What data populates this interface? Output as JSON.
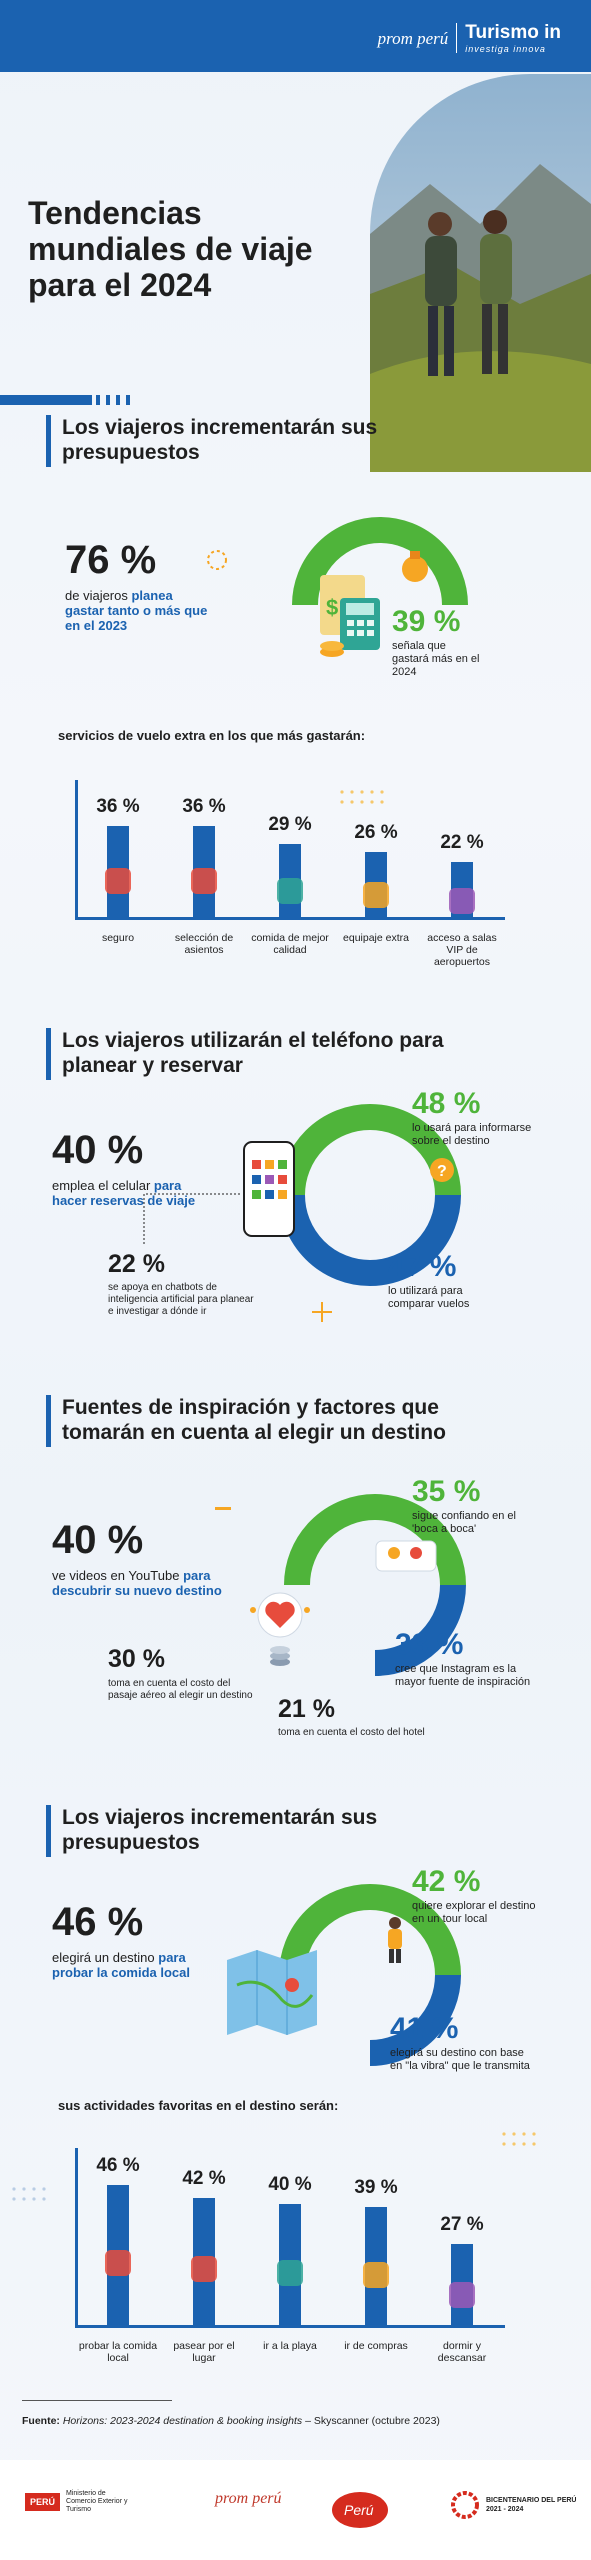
{
  "header": {
    "brand": "prom perú",
    "brand2": "Turismo in",
    "brand2_sub": "investiga innova"
  },
  "main_title": "Tendencias mundiales de viaje para el 2024",
  "section1": {
    "title": "Los viajeros incrementarán sus presupuestos",
    "left_pct": "76 %",
    "left_text_a": "de viajeros ",
    "left_text_b": "planea gastar tanto o más que en el 2023",
    "right_pct": "39 %",
    "right_text": "señala que gastará más en el 2024",
    "chart_caption": "servicios de vuelo extra en los que más gastarán:"
  },
  "chart_data": [
    {
      "type": "bar",
      "categories": [
        "seguro",
        "selección de asientos",
        "comida de mejor calidad",
        "equipaje extra",
        "acceso a salas VIP de aeropuertos"
      ],
      "values": [
        36,
        36,
        29,
        26,
        22
      ],
      "value_labels": [
        "36 %",
        "36 %",
        "29 %",
        "26 %",
        "22 %"
      ],
      "ylim": [
        0,
        40
      ]
    },
    {
      "type": "bar",
      "categories": [
        "probar la comida local",
        "pasear por el lugar",
        "ir a la playa",
        "ir de compras",
        "dormir y descansar"
      ],
      "values": [
        46,
        42,
        40,
        39,
        27
      ],
      "value_labels": [
        "46 %",
        "42 %",
        "40 %",
        "39 %",
        "27 %"
      ],
      "ylim": [
        0,
        50
      ]
    }
  ],
  "section2": {
    "title": "Los viajeros utilizarán el teléfono para planear y reservar",
    "left_pct": "40 %",
    "left_text_a": "emplea el celular ",
    "left_text_b": "para hacer reservas de viaje",
    "top_pct": "48 %",
    "top_text": "lo usará para informarse sobre el destino",
    "bottom_pct": "47 %",
    "bottom_text": "lo utilizará para comparar vuelos",
    "ai_pct": "22 %",
    "ai_text": "se apoya en chatbots de inteligencia artificial para planear e investigar a dónde ir"
  },
  "section3": {
    "title": "Fuentes de inspiración y factores que tomarán en cuenta al elegir un destino",
    "left_pct": "40 %",
    "left_text_a": "ve videos en YouTube ",
    "left_text_b": "para descubrir su nuevo destino",
    "top_pct": "35 %",
    "top_text": "sigue confiando en el 'boca a boca'",
    "right_pct": "33 %",
    "right_text": "cree que Instagram es la mayor fuente de inspiración",
    "air_pct": "30 %",
    "air_text": "toma en cuenta el costo del pasaje aéreo al elegir un destino",
    "hotel_pct": "21 %",
    "hotel_text": "toma en cuenta el costo del hotel"
  },
  "section4": {
    "title": "Los viajeros incrementarán sus presupuestos",
    "left_pct": "46 %",
    "left_text_a": "elegirá un destino ",
    "left_text_b": "para probar la comida local",
    "top_pct": "42 %",
    "top_text": "quiere explorar el destino en un tour local",
    "bottom_pct": "41 %",
    "bottom_text": "elegirá su destino con base en \"la vibra\" que le transmita",
    "chart_caption": "sus actividades favoritas en el destino serán:"
  },
  "source": {
    "label": "Fuente:",
    "text": " Horizons: 2023-2024 destination & booking insights",
    "suffix": " – Skyscanner (octubre 2023)"
  },
  "footer": {
    "ministry": "Ministerio de Comercio Exterior y Turismo",
    "peru_tag": "PERÚ",
    "promperu": "prom perú",
    "bicentenario": "BICENTENARIO DEL PERÚ",
    "bicentenario_years": "2021 - 2024",
    "marca": "Perú"
  },
  "colors": {
    "blue": "#1b62b0",
    "green": "#4fb43a",
    "orange": "#f6a623"
  }
}
